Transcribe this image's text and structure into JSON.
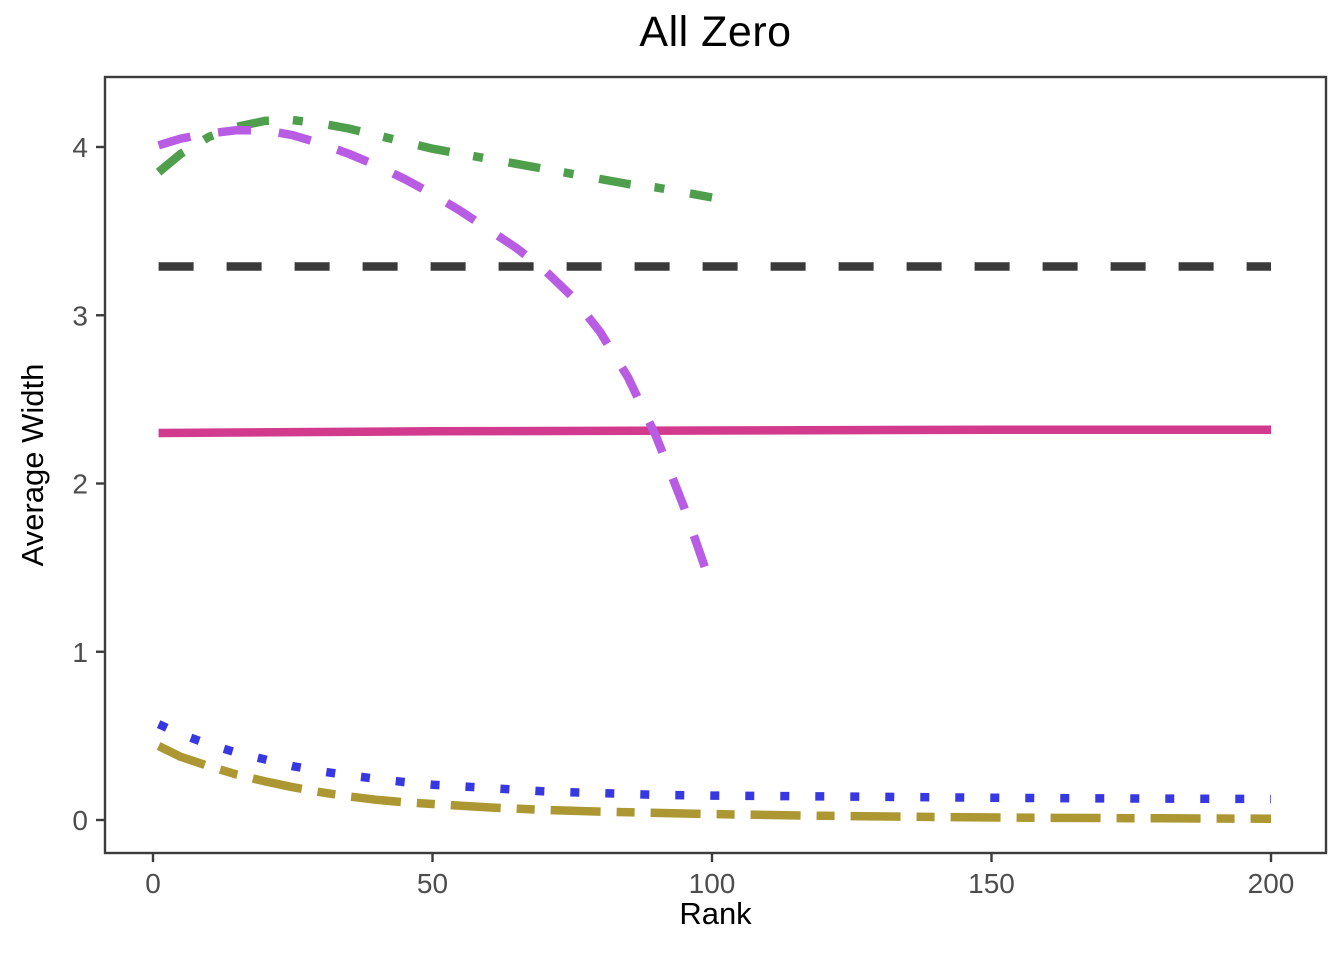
{
  "chart_data": {
    "type": "line",
    "title": "All Zero",
    "xlabel": "Rank",
    "ylabel": "Average Width",
    "xlim": [
      -9,
      210
    ],
    "ylim": [
      -0.2,
      4.42
    ],
    "x_ticks": [
      0,
      50,
      100,
      150,
      200
    ],
    "y_ticks": [
      0,
      1,
      2,
      3,
      4
    ],
    "grid": false,
    "legend_position": "none",
    "series": [
      {
        "name": "black-dashed-constant",
        "color": "#3a3a3a",
        "linetype": "dashed",
        "points": [
          [
            1,
            3.29
          ],
          [
            200,
            3.29
          ]
        ]
      },
      {
        "name": "pink-solid-constant",
        "color": "#d23b8d",
        "linetype": "solid",
        "points": [
          [
            1,
            2.3
          ],
          [
            50,
            2.31
          ],
          [
            100,
            2.315
          ],
          [
            150,
            2.32
          ],
          [
            200,
            2.32
          ]
        ]
      },
      {
        "name": "green-dotdash",
        "color": "#4f9e4c",
        "linetype": "dotdash",
        "points": [
          [
            1,
            3.85
          ],
          [
            5,
            3.96
          ],
          [
            10,
            4.06
          ],
          [
            15,
            4.12
          ],
          [
            20,
            4.155
          ],
          [
            25,
            4.16
          ],
          [
            30,
            4.14
          ],
          [
            35,
            4.11
          ],
          [
            40,
            4.07
          ],
          [
            45,
            4.03
          ],
          [
            50,
            3.99
          ],
          [
            55,
            3.96
          ],
          [
            60,
            3.93
          ],
          [
            65,
            3.9
          ],
          [
            70,
            3.87
          ],
          [
            75,
            3.84
          ],
          [
            80,
            3.81
          ],
          [
            85,
            3.78
          ],
          [
            90,
            3.76
          ],
          [
            95,
            3.73
          ],
          [
            100,
            3.7
          ]
        ]
      },
      {
        "name": "olive-twodash",
        "color": "#ac9733",
        "linetype": "twodash",
        "points": [
          [
            1,
            0.44
          ],
          [
            5,
            0.375
          ],
          [
            10,
            0.32
          ],
          [
            15,
            0.27
          ],
          [
            20,
            0.23
          ],
          [
            25,
            0.195
          ],
          [
            30,
            0.165
          ],
          [
            35,
            0.14
          ],
          [
            40,
            0.12
          ],
          [
            45,
            0.105
          ],
          [
            50,
            0.095
          ],
          [
            60,
            0.075
          ],
          [
            70,
            0.06
          ],
          [
            80,
            0.05
          ],
          [
            90,
            0.042
          ],
          [
            100,
            0.035
          ],
          [
            120,
            0.025
          ],
          [
            140,
            0.018
          ],
          [
            160,
            0.013
          ],
          [
            180,
            0.01
          ],
          [
            200,
            0.008
          ]
        ]
      },
      {
        "name": "blue-dotted",
        "color": "#3838e2",
        "linetype": "dotted",
        "points": [
          [
            1,
            0.57
          ],
          [
            5,
            0.51
          ],
          [
            10,
            0.45
          ],
          [
            15,
            0.4
          ],
          [
            20,
            0.36
          ],
          [
            25,
            0.32
          ],
          [
            30,
            0.29
          ],
          [
            35,
            0.265
          ],
          [
            40,
            0.245
          ],
          [
            45,
            0.225
          ],
          [
            50,
            0.21
          ],
          [
            60,
            0.19
          ],
          [
            70,
            0.17
          ],
          [
            80,
            0.16
          ],
          [
            90,
            0.15
          ],
          [
            100,
            0.145
          ],
          [
            120,
            0.14
          ],
          [
            140,
            0.135
          ],
          [
            160,
            0.13
          ],
          [
            180,
            0.127
          ],
          [
            200,
            0.125
          ]
        ]
      },
      {
        "name": "purple-longdash",
        "color": "#b85ce4",
        "linetype": "longdash",
        "points": [
          [
            1,
            4.01
          ],
          [
            5,
            4.05
          ],
          [
            10,
            4.08
          ],
          [
            15,
            4.1
          ],
          [
            20,
            4.1
          ],
          [
            25,
            4.07
          ],
          [
            30,
            4.02
          ],
          [
            35,
            3.96
          ],
          [
            40,
            3.89
          ],
          [
            45,
            3.81
          ],
          [
            50,
            3.72
          ],
          [
            55,
            3.62
          ],
          [
            60,
            3.51
          ],
          [
            65,
            3.4
          ],
          [
            70,
            3.27
          ],
          [
            75,
            3.11
          ],
          [
            80,
            2.9
          ],
          [
            85,
            2.63
          ],
          [
            90,
            2.28
          ],
          [
            95,
            1.86
          ],
          [
            100,
            1.38
          ]
        ]
      }
    ]
  },
  "styles": {
    "background": "#ffffff",
    "axis_text_color": "#4d4d4d",
    "axis_line_color": "#3c3c3c",
    "title_color": "#000000"
  }
}
